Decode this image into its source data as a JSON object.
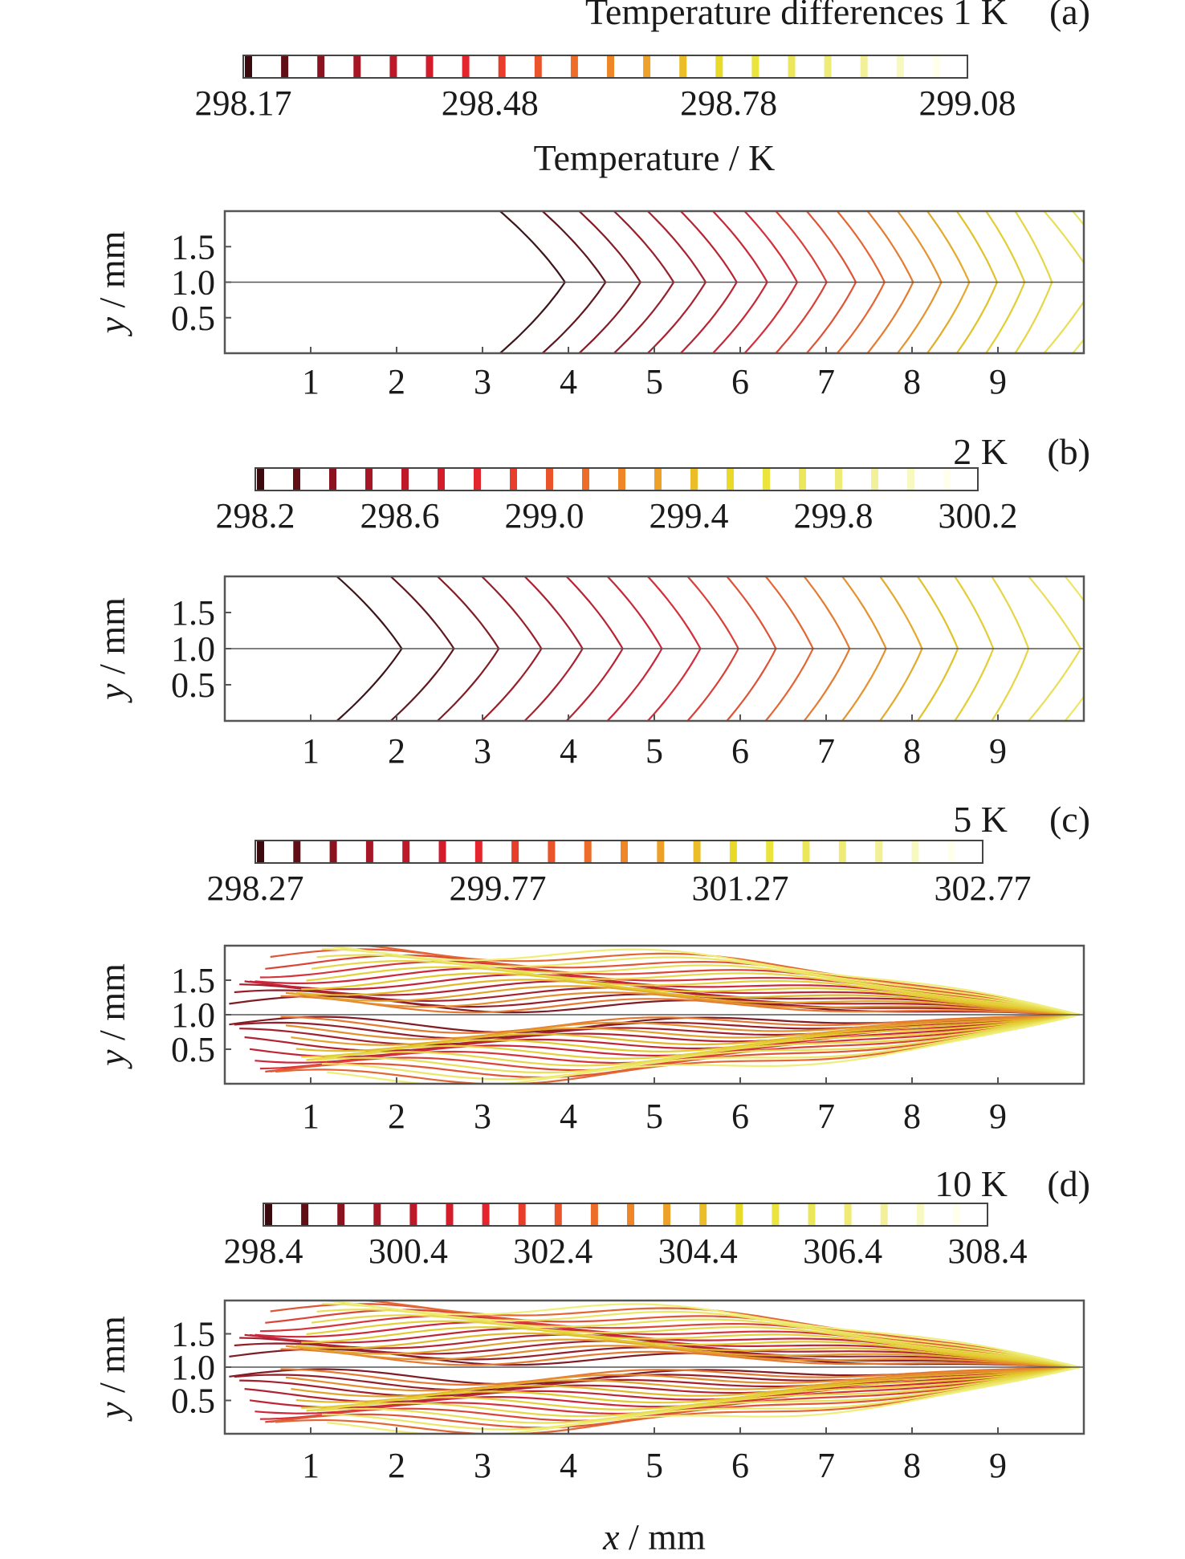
{
  "figure": {
    "temp_label": "Temperature / K",
    "x_label_var": "x",
    "x_label_unit": " / mm",
    "y_label_var": "y",
    "y_label_unit": " / mm"
  },
  "chart_data": [
    {
      "type": "contour",
      "panel_label": "(a)",
      "condition_text": "Temperature differences 1 K",
      "colorbar": {
        "min": 298.17,
        "max": 299.08,
        "ticks": [
          "298.17",
          "298.48",
          "298.78",
          "299.08"
        ],
        "tick_values": [
          298.17,
          298.48,
          298.78,
          299.08
        ],
        "levels": 20
      },
      "xlim": [
        0,
        10
      ],
      "ylim": [
        0,
        2
      ],
      "x_ticks": [
        "1",
        "2",
        "3",
        "4",
        "5",
        "6",
        "7",
        "8",
        "9"
      ],
      "y_ticks": [
        "0.5",
        "1.0",
        "1.5"
      ],
      "start_x": 3.4,
      "pattern": "chevron"
    },
    {
      "type": "contour",
      "panel_label": "(b)",
      "condition_text": "2 K",
      "colorbar": {
        "min": 298.2,
        "max": 300.2,
        "ticks": [
          "298.2",
          "298.6",
          "299.0",
          "299.4",
          "299.8",
          "300.2"
        ],
        "tick_values": [
          298.2,
          298.6,
          299.0,
          299.4,
          299.8,
          300.2
        ],
        "levels": 20
      },
      "xlim": [
        0,
        10
      ],
      "ylim": [
        0,
        2
      ],
      "x_ticks": [
        "1",
        "2",
        "3",
        "4",
        "5",
        "6",
        "7",
        "8",
        "9"
      ],
      "y_ticks": [
        "0.5",
        "1.0",
        "1.5"
      ],
      "start_x": 1.5,
      "pattern": "chevron"
    },
    {
      "type": "contour",
      "panel_label": "(c)",
      "condition_text": "5 K",
      "colorbar": {
        "min": 298.27,
        "max": 302.77,
        "ticks": [
          "298.27",
          "299.77",
          "301.27",
          "302.77"
        ],
        "tick_values": [
          298.27,
          299.77,
          301.27,
          302.77
        ],
        "levels": 20
      },
      "xlim": [
        0,
        10
      ],
      "ylim": [
        0,
        2
      ],
      "x_ticks": [
        "1",
        "2",
        "3",
        "4",
        "5",
        "6",
        "7",
        "8",
        "9"
      ],
      "y_ticks": [
        "0.5",
        "1.0",
        "1.5"
      ],
      "start_x": 0.0,
      "pattern": "wavy"
    },
    {
      "type": "contour",
      "panel_label": "(d)",
      "condition_text": "10 K",
      "colorbar": {
        "min": 298.4,
        "max": 308.4,
        "ticks": [
          "298.4",
          "300.4",
          "302.4",
          "304.4",
          "306.4",
          "308.4"
        ],
        "tick_values": [
          298.4,
          300.4,
          302.4,
          304.4,
          306.4,
          308.4
        ],
        "levels": 20
      },
      "xlim": [
        0,
        10
      ],
      "ylim": [
        0,
        2
      ],
      "x_ticks": [
        "1",
        "2",
        "3",
        "4",
        "5",
        "6",
        "7",
        "8",
        "9"
      ],
      "y_ticks": [
        "0.5",
        "1.0",
        "1.5"
      ],
      "start_x": 0.0,
      "pattern": "wavy"
    }
  ]
}
